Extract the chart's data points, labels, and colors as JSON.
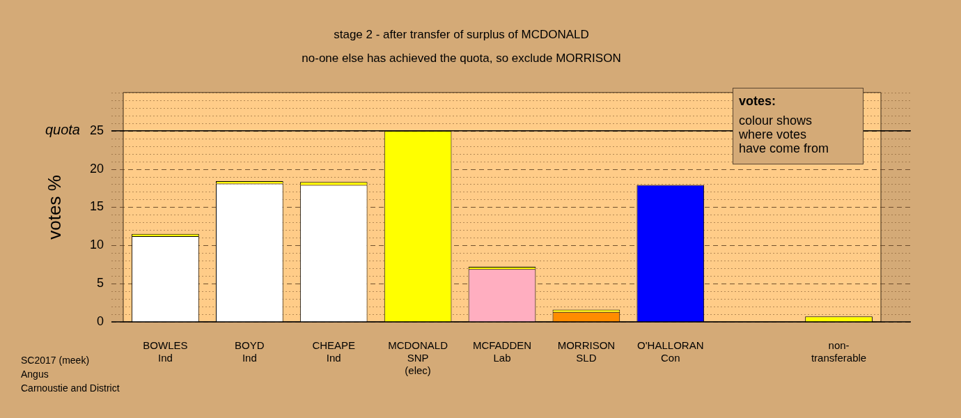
{
  "chart_data": {
    "type": "bar",
    "stacked": true,
    "title": "stage 2 - after transfer of surplus of MCDONALD",
    "subtitle": "no-one else has achieved the quota, so exclude MORRISON",
    "ylabel": "votes %",
    "categories": [
      "BOWLES\nInd",
      "BOYD\nInd",
      "CHEAPE\nInd",
      "MCDONALD\nSNP\n(elec)",
      "MCFADDEN\nLab",
      "MORRISON\nSLD",
      "O'HALLORAN\nCon",
      null,
      "non-\ntransferable"
    ],
    "series": [
      {
        "colors": [
          "#ffffff",
          "#ffffff",
          "#ffffff",
          "#ffff00",
          "#ffaec0",
          "#ff8c00",
          "#0000ff",
          "#ffffff",
          "#ffff00"
        ],
        "values": [
          11.2,
          18.1,
          17.9,
          25,
          6.9,
          1.3,
          17.9,
          null,
          0
        ]
      },
      {
        "color": "#ffff00",
        "values": [
          0.3,
          0.3,
          0.4,
          0,
          0.3,
          0.3,
          0,
          null,
          0.7
        ]
      }
    ],
    "ylim": [
      0,
      30
    ],
    "yticks": [
      0,
      {
        "value": 1,
        "label": null
      },
      {
        "value": 2,
        "label": null
      },
      {
        "value": 3,
        "label": null
      },
      {
        "value": 4,
        "label": null
      },
      5,
      {
        "value": 6,
        "label": null
      },
      {
        "value": 7,
        "label": null
      },
      {
        "value": 8,
        "label": null
      },
      {
        "value": 9,
        "label": null
      },
      10,
      {
        "value": 11,
        "label": null
      },
      {
        "value": 12,
        "label": null
      },
      {
        "value": 13,
        "label": null
      },
      {
        "value": 14,
        "label": null
      },
      15,
      {
        "value": 16,
        "label": null
      },
      {
        "value": 17,
        "label": null
      },
      {
        "value": 18,
        "label": null
      },
      {
        "value": 19,
        "label": null
      },
      20,
      {
        "value": 21,
        "label": null
      },
      {
        "value": 22,
        "label": null
      },
      {
        "value": 23,
        "label": null
      },
      {
        "value": 24,
        "label": null
      },
      25,
      {
        "value": 26,
        "label": null
      },
      {
        "value": 27,
        "label": null
      },
      {
        "value": 28,
        "label": null
      },
      {
        "value": 29,
        "label": null
      },
      {
        "value": 30,
        "label": null
      }
    ],
    "grid": "y",
    "legend": false,
    "ref_lines": [
      {
        "axis": "y",
        "value": 25,
        "label": "quota",
        "color": "#000000"
      }
    ],
    "annotations": [
      "votes:",
      "colour shows\nwhere votes\nhave come from",
      "SC2017 (meek)\nAngus\nCarnoustie and District"
    ]
  }
}
